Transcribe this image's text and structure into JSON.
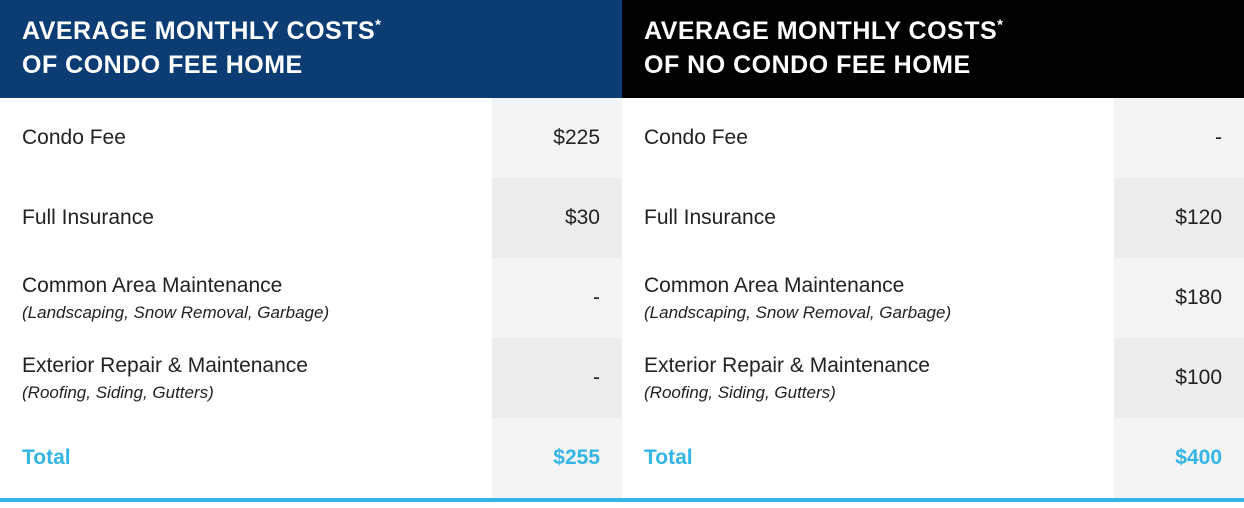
{
  "accent_color": "#33b5e5",
  "left": {
    "header_bg": "#0b3c74",
    "title_line1": "AVERAGE MONTHLY COSTS",
    "title_sup": "*",
    "title_line2": "OF CONDO FEE HOME",
    "rows": [
      {
        "label": "Condo Fee",
        "sub": "",
        "value": "$225"
      },
      {
        "label": "Full Insurance",
        "sub": "",
        "value": "$30"
      },
      {
        "label": "Common Area Maintenance",
        "sub": "(Landscaping, Snow Removal, Garbage)",
        "value": "-"
      },
      {
        "label": "Exterior Repair & Maintenance",
        "sub": "(Roofing, Siding, Gutters)",
        "value": "-"
      }
    ],
    "total_label": "Total",
    "total_value": "$255"
  },
  "right": {
    "header_bg": "#000000",
    "title_line1": "AVERAGE MONTHLY COSTS",
    "title_sup": "*",
    "title_line2": "OF NO CONDO FEE HOME",
    "rows": [
      {
        "label": "Condo Fee",
        "sub": "",
        "value": "-"
      },
      {
        "label": "Full Insurance",
        "sub": "",
        "value": "$120"
      },
      {
        "label": "Common Area Maintenance",
        "sub": "(Landscaping, Snow Removal, Garbage)",
        "value": "$180"
      },
      {
        "label": "Exterior Repair & Maintenance",
        "sub": "(Roofing, Siding, Gutters)",
        "value": "$100"
      }
    ],
    "total_label": "Total",
    "total_value": "$400"
  }
}
